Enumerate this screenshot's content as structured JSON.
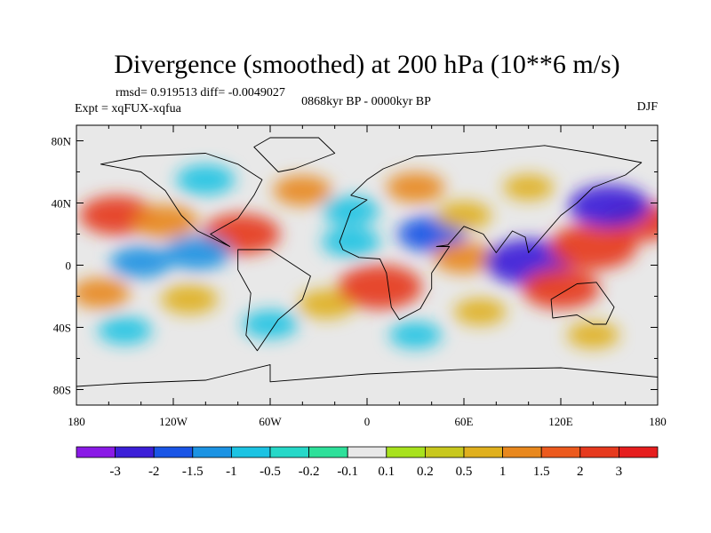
{
  "chart_data": {
    "type": "heatmap",
    "title": "Divergence (smoothed) at 200 hPa (10**6 m/s)",
    "stats": "rmsd= 0.919513 diff= -0.0049027",
    "experiment": "Expt = xqFUX-xqfua",
    "period": "0868kyr BP - 0000kyr BP",
    "season": "DJF",
    "x_ticks": [
      "180",
      "120W",
      "60W",
      "0",
      "60E",
      "120E",
      "180"
    ],
    "x_tick_lon": [
      -180,
      -120,
      -60,
      0,
      60,
      120,
      180
    ],
    "y_ticks": [
      "80N",
      "40N",
      "0",
      "40S",
      "80S"
    ],
    "y_tick_lat": [
      80,
      40,
      0,
      -40,
      -80
    ],
    "lon_range": [
      -180,
      180
    ],
    "lat_range": [
      -90,
      90
    ],
    "colorbar": {
      "labels": [
        "-3",
        "-2",
        "-1.5",
        "-1",
        "-0.5",
        "-0.2",
        "-0.1",
        "0.1",
        "0.2",
        "0.5",
        "1",
        "1.5",
        "2",
        "3"
      ],
      "levels": [
        -3,
        -2,
        -1.5,
        -1,
        -0.5,
        -0.2,
        -0.1,
        0.1,
        0.2,
        0.5,
        1,
        1.5,
        2,
        3
      ],
      "colors": [
        "#8A1AE6",
        "#3C1FD8",
        "#1A55E6",
        "#1C93E3",
        "#1CC3E3",
        "#26D8C8",
        "#2EE09A",
        "#E8E8E8",
        "#A8E21E",
        "#C8C81E",
        "#E0B01E",
        "#E8881E",
        "#EC5A1E",
        "#E63A1E",
        "#E61E1E"
      ]
    },
    "anomalies": [
      {
        "lon": -155,
        "lat": 32,
        "value": 2.0
      },
      {
        "lon": -125,
        "lat": 28,
        "value": 1.4
      },
      {
        "lon": -78,
        "lat": 20,
        "value": 2.2
      },
      {
        "lon": -105,
        "lat": 8,
        "value": -1.5
      },
      {
        "lon": -140,
        "lat": 2,
        "value": -1.2
      },
      {
        "lon": -165,
        "lat": -18,
        "value": 1.0
      },
      {
        "lon": -110,
        "lat": -22,
        "value": 0.9
      },
      {
        "lon": -60,
        "lat": -38,
        "value": -0.8
      },
      {
        "lon": -25,
        "lat": -25,
        "value": 0.9
      },
      {
        "lon": 8,
        "lat": -14,
        "value": 2.6
      },
      {
        "lon": 40,
        "lat": 20,
        "value": -1.6
      },
      {
        "lon": 60,
        "lat": 5,
        "value": 1.2
      },
      {
        "lon": 100,
        "lat": 2,
        "value": -2.8
      },
      {
        "lon": 140,
        "lat": 12,
        "value": 2.8
      },
      {
        "lon": 170,
        "lat": 28,
        "value": 2.0
      },
      {
        "lon": 150,
        "lat": 38,
        "value": -2.4
      },
      {
        "lon": 120,
        "lat": -15,
        "value": 2.2
      },
      {
        "lon": -100,
        "lat": 55,
        "value": -1.0
      },
      {
        "lon": -40,
        "lat": 48,
        "value": 1.0
      },
      {
        "lon": -10,
        "lat": 35,
        "value": -0.9
      },
      {
        "lon": 30,
        "lat": 50,
        "value": 1.0
      },
      {
        "lon": 100,
        "lat": 50,
        "value": 0.5
      },
      {
        "lon": 70,
        "lat": -30,
        "value": 0.6
      },
      {
        "lon": -150,
        "lat": -42,
        "value": -0.7
      },
      {
        "lon": 30,
        "lat": -45,
        "value": -0.6
      },
      {
        "lon": 140,
        "lat": -45,
        "value": 0.6
      },
      {
        "lon": -10,
        "lat": 15,
        "value": -1.0
      },
      {
        "lon": 60,
        "lat": 32,
        "value": 0.8
      }
    ],
    "landmasses": [
      {
        "name": "north-america",
        "points": [
          [
            -165,
            65
          ],
          [
            -140,
            70
          ],
          [
            -100,
            72
          ],
          [
            -80,
            65
          ],
          [
            -65,
            55
          ],
          [
            -70,
            45
          ],
          [
            -80,
            30
          ],
          [
            -97,
            20
          ],
          [
            -85,
            12
          ],
          [
            -105,
            22
          ],
          [
            -115,
            32
          ],
          [
            -125,
            48
          ],
          [
            -140,
            60
          ]
        ]
      },
      {
        "name": "south-america",
        "points": [
          [
            -80,
            10
          ],
          [
            -60,
            10
          ],
          [
            -35,
            -7
          ],
          [
            -40,
            -22
          ],
          [
            -55,
            -35
          ],
          [
            -68,
            -55
          ],
          [
            -75,
            -45
          ],
          [
            -72,
            -18
          ],
          [
            -80,
            -3
          ]
        ]
      },
      {
        "name": "greenland",
        "points": [
          [
            -55,
            60
          ],
          [
            -45,
            62
          ],
          [
            -20,
            72
          ],
          [
            -30,
            82
          ],
          [
            -60,
            82
          ],
          [
            -70,
            76
          ]
        ]
      },
      {
        "name": "africa-eurasia",
        "points": [
          [
            -17,
            15
          ],
          [
            -10,
            35
          ],
          [
            0,
            42
          ],
          [
            -10,
            45
          ],
          [
            0,
            55
          ],
          [
            10,
            62
          ],
          [
            30,
            70
          ],
          [
            70,
            73
          ],
          [
            110,
            77
          ],
          [
            140,
            72
          ],
          [
            170,
            66
          ],
          [
            160,
            58
          ],
          [
            140,
            50
          ],
          [
            130,
            40
          ],
          [
            120,
            32
          ],
          [
            110,
            20
          ],
          [
            100,
            8
          ],
          [
            98,
            18
          ],
          [
            90,
            22
          ],
          [
            80,
            8
          ],
          [
            72,
            20
          ],
          [
            60,
            25
          ],
          [
            50,
            13
          ],
          [
            43,
            12
          ],
          [
            51,
            12
          ],
          [
            40,
            -5
          ],
          [
            40,
            -15
          ],
          [
            33,
            -28
          ],
          [
            20,
            -35
          ],
          [
            15,
            -27
          ],
          [
            12,
            -5
          ],
          [
            8,
            4
          ],
          [
            -5,
            5
          ],
          [
            -15,
            10
          ]
        ]
      },
      {
        "name": "australia",
        "points": [
          [
            114,
            -22
          ],
          [
            130,
            -12
          ],
          [
            142,
            -11
          ],
          [
            153,
            -27
          ],
          [
            148,
            -38
          ],
          [
            140,
            -38
          ],
          [
            130,
            -32
          ],
          [
            115,
            -34
          ]
        ]
      },
      {
        "name": "antarctica",
        "points": [
          [
            -180,
            -78
          ],
          [
            -150,
            -76
          ],
          [
            -100,
            -74
          ],
          [
            -60,
            -64
          ],
          [
            -60,
            -75
          ],
          [
            0,
            -70
          ],
          [
            60,
            -67
          ],
          [
            120,
            -66
          ],
          [
            180,
            -72
          ],
          [
            180,
            -90
          ],
          [
            -180,
            -90
          ]
        ]
      }
    ]
  }
}
